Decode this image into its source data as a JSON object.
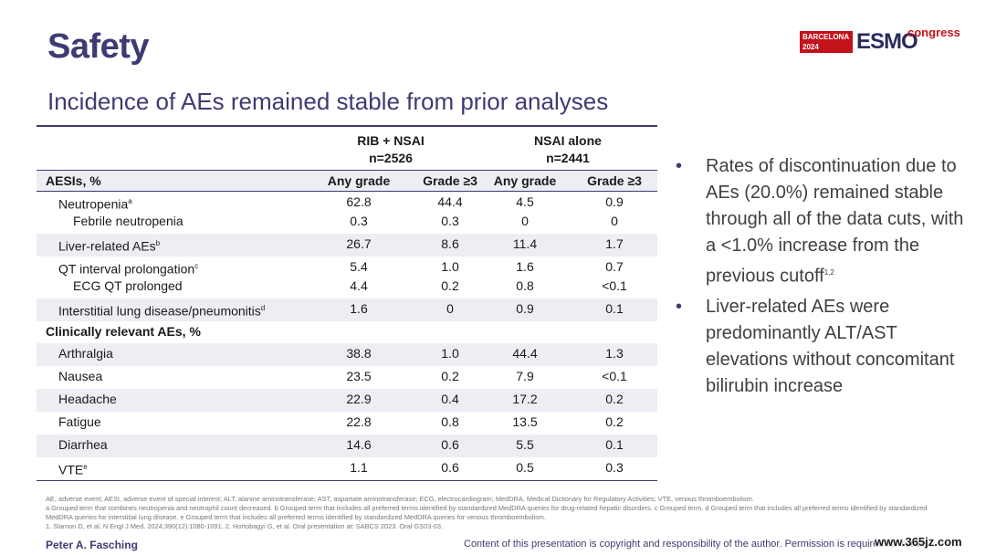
{
  "slide": {
    "title": "Safety",
    "subtitle": "Incidence of AEs remained stable from prior analyses"
  },
  "logo": {
    "box_line1": "BARCELONA",
    "box_line2": "2024",
    "esmo": "ESMO",
    "congress": "congress",
    "colors": {
      "red": "#c4121a",
      "navy": "#2b2a5e"
    }
  },
  "table": {
    "group_rib": {
      "name": "RIB + NSAI",
      "n": "n=2526"
    },
    "group_nsai": {
      "name": "NSAI alone",
      "n": "n=2441"
    },
    "aesi_header": "AESIs, %",
    "col_any": "Any grade",
    "col_g3": "Grade ≥3",
    "clinical_header": "Clinically relevant AEs, %",
    "aesi_rows": [
      {
        "label": "Neutropenia",
        "sup": "a",
        "vals": [
          "62.8",
          "44.4",
          "4.5",
          "0.9"
        ],
        "sub": {
          "label": "Febrile neutropenia",
          "vals": [
            "0.3",
            "0.3",
            "0",
            "0"
          ]
        }
      },
      {
        "label": "Liver-related AEs",
        "sup": "b",
        "vals": [
          "26.7",
          "8.6",
          "11.4",
          "1.7"
        ]
      },
      {
        "label": "QT interval prolongation",
        "sup": "c",
        "vals": [
          "5.4",
          "1.0",
          "1.6",
          "0.7"
        ],
        "sub": {
          "label": "ECG QT prolonged",
          "vals": [
            "4.4",
            "0.2",
            "0.8",
            "<0.1"
          ]
        }
      },
      {
        "label": "Interstitial lung disease/pneumonitis",
        "sup": "d",
        "vals": [
          "1.6",
          "0",
          "0.9",
          "0.1"
        ]
      }
    ],
    "clinical_rows": [
      {
        "label": "Arthralgia",
        "sup": "",
        "vals": [
          "38.8",
          "1.0",
          "44.4",
          "1.3"
        ]
      },
      {
        "label": "Nausea",
        "sup": "",
        "vals": [
          "23.5",
          "0.2",
          "7.9",
          "<0.1"
        ]
      },
      {
        "label": "Headache",
        "sup": "",
        "vals": [
          "22.9",
          "0.4",
          "17.2",
          "0.2"
        ]
      },
      {
        "label": "Fatigue",
        "sup": "",
        "vals": [
          "22.8",
          "0.8",
          "13.5",
          "0.2"
        ]
      },
      {
        "label": "Diarrhea",
        "sup": "",
        "vals": [
          "14.6",
          "0.6",
          "5.5",
          "0.1"
        ]
      },
      {
        "label": "VTE",
        "sup": "e",
        "vals": [
          "1.1",
          "0.6",
          "0.5",
          "0.3"
        ]
      }
    ]
  },
  "bullets": {
    "b1_text": "Rates of discontinuation due to AEs (20.0%) remained stable through all of the data cuts, with a <1.0% increase from the previous cutoff",
    "b1_sup": "1,2",
    "b2_text": "Liver-related AEs were predominantly ALT/AST elevations without concomitant bilirubin increase"
  },
  "footnotes": {
    "abbrev": "AE, adverse event; AESI, adverse event of special interest; ALT, alanine aminotransferase; AST, aspartate aminotransferase; ECG, electrocardiogram; MedDRA, Medical Dictionary for Regulatory Activities; VTE, venous thromboembolism.",
    "grouped": "a Grouped term that combines neutropenia and neutrophil count decreased. b Grouped term that includes all preferred terms identified by standardized MedDRA queries for drug-related hepatic disorders. c Grouped term. d Grouped term that includes all preferred terms identified by standardized MedDRA queries for interstitial lung disease. e Grouped term that includes all preferred terms identified by standardized MedDRA queries for venous thromboembolism.",
    "refs": "1. Slamon D, et al. N Engl J Med. 2024;390(12):1080-1091. 2. Hortobagyi G, et al. Oral presentation at: SABCS 2023. Oral GS03-03."
  },
  "footer": {
    "presenter": "Peter A. Fasching",
    "copyright": "Content of this presentation is copyright and responsibility of the author. Permission is required for reuse.",
    "watermark": "www.365jz.com"
  }
}
